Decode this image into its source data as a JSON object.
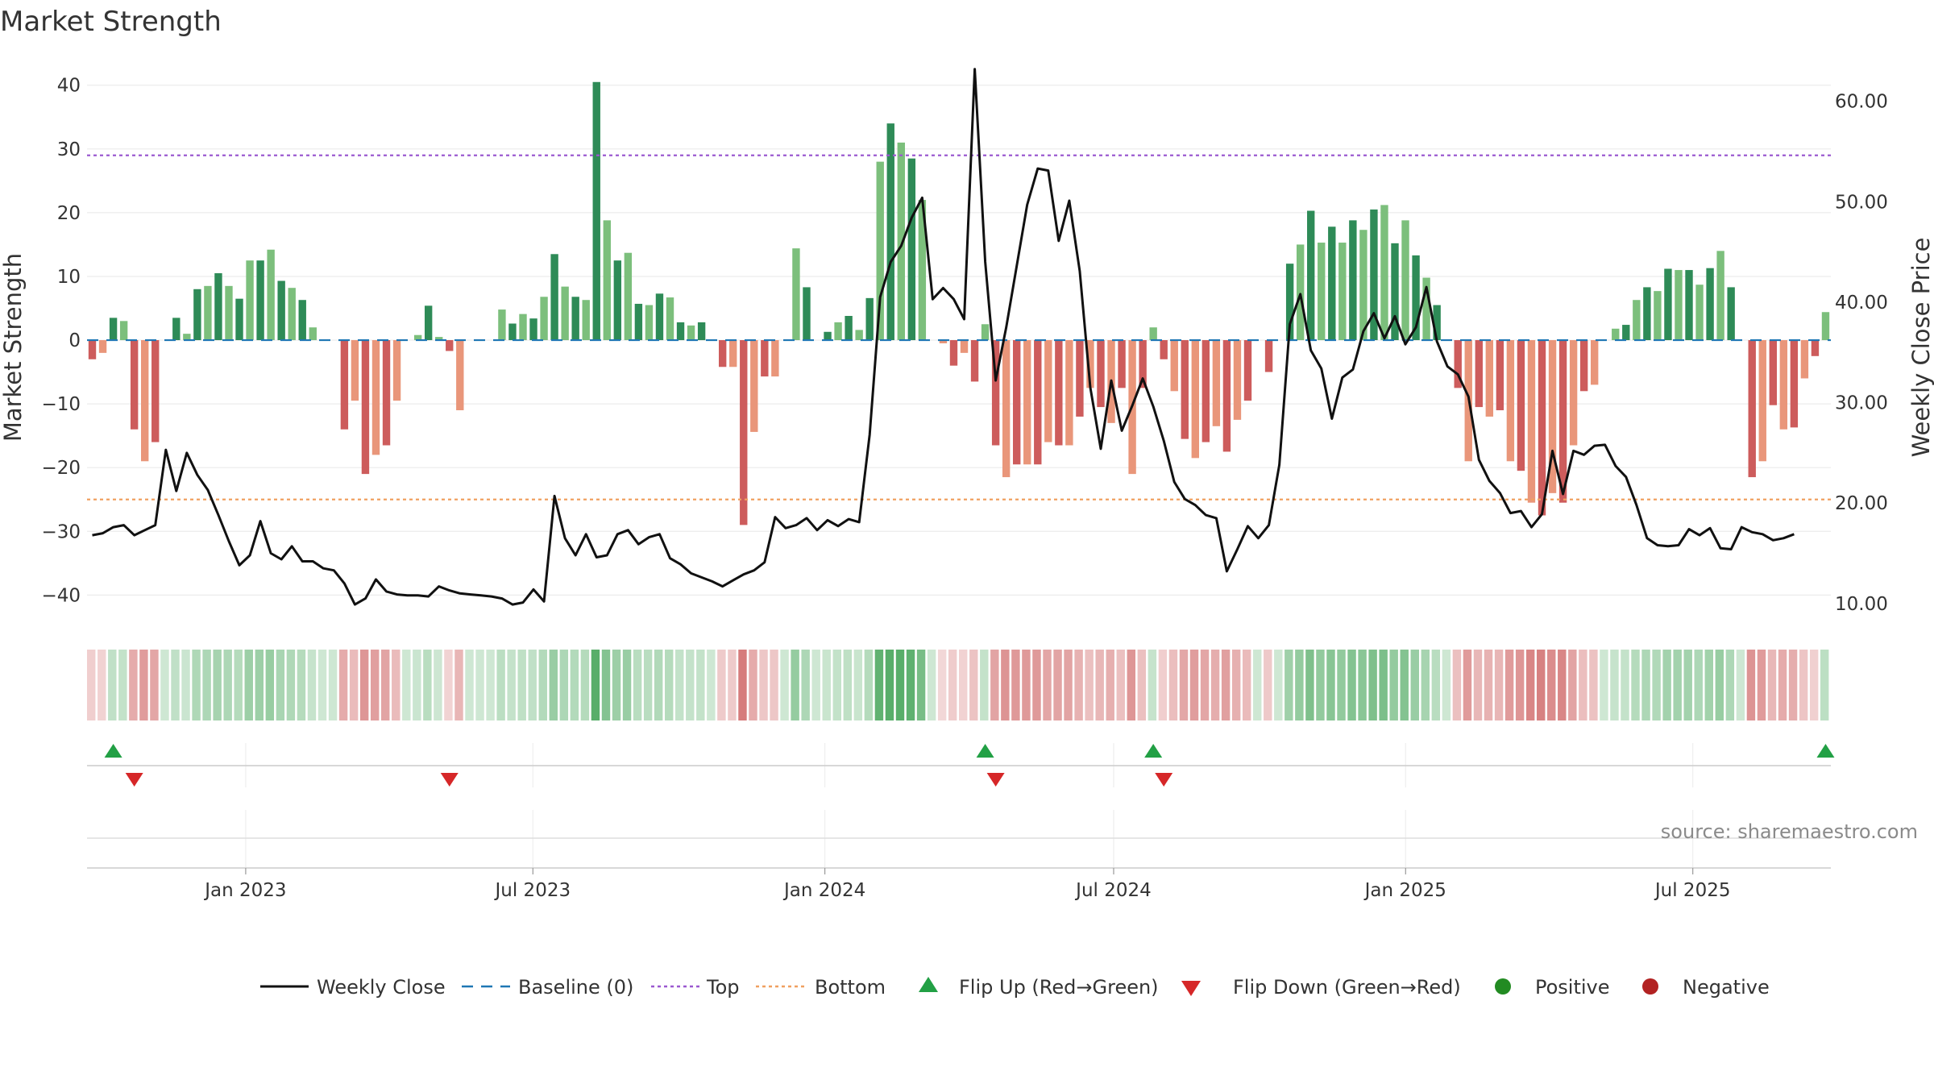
{
  "chart_data": {
    "type": "bar",
    "title": "Market Strength",
    "ylabel": "Market Strength",
    "y2label": "Weekly Close Price",
    "ylim": [
      -44,
      43
    ],
    "y2lim": [
      8.3,
      63.5
    ],
    "yticks": [
      "40",
      "30",
      "20",
      "10",
      "0",
      "−10",
      "−20",
      "−30",
      "−40"
    ],
    "y2ticks": [
      "60.00",
      "50.00",
      "40.00",
      "30.00",
      "20.00",
      "10.00"
    ],
    "xticks": [
      "Jan 2023",
      "Jul 2023",
      "Jan 2024",
      "Jul 2024",
      "Jan 2025",
      "Jul 2025"
    ],
    "x_start": "2022-09-23",
    "x_end": "2025-09-26",
    "grid": true,
    "reference_lines": [
      {
        "name": "Baseline (0)",
        "value": 0,
        "color": "#1f77b4",
        "style": "dashed"
      },
      {
        "name": "Top",
        "value": 29,
        "color": "#9b59d0",
        "style": "dotted"
      },
      {
        "name": "Bottom",
        "value": -25,
        "color": "#f0a060",
        "style": "dotted"
      }
    ],
    "strength": [
      -3,
      -2,
      3.5,
      3,
      -14,
      -19,
      -16,
      0,
      3.5,
      1,
      8,
      8.5,
      10.5,
      8.5,
      6.5,
      12.5,
      12.5,
      14.2,
      9.3,
      8.2,
      6.3,
      2,
      0,
      0,
      -14,
      -9.5,
      -21,
      -18,
      -16.5,
      -9.5,
      0,
      0.8,
      5.4,
      0.5,
      -1.7,
      -11,
      0,
      0,
      0,
      4.8,
      2.6,
      4.1,
      3.4,
      6.8,
      13.5,
      8.4,
      6.8,
      6.3,
      40.5,
      18.8,
      12.5,
      13.7,
      5.7,
      5.5,
      7.3,
      6.7,
      2.8,
      2.3,
      2.8,
      0,
      -4.2,
      -4.2,
      -29,
      -14.4,
      -5.7,
      -5.7,
      0,
      14.4,
      8.3,
      0,
      1.3,
      2.8,
      3.8,
      1.6,
      6.6,
      28,
      34,
      31,
      28.5,
      22,
      0,
      -0.5,
      -4,
      -2,
      -6.5,
      2.5,
      -16.5,
      -21.5,
      -19.5,
      -19.5,
      -19.5,
      -16,
      -16.5,
      -16.5,
      -12,
      -7.5,
      -10.5,
      -13,
      -7.5,
      -21,
      -7.5,
      2,
      -3,
      -8,
      -15.5,
      -18.5,
      -16,
      -13.5,
      -17.5,
      -12.5,
      -9.5,
      0,
      -5,
      0,
      12,
      15,
      20.3,
      15.3,
      17.8,
      15.3,
      18.8,
      17.3,
      20.5,
      21.2,
      15.2,
      18.8,
      13.3,
      9.8,
      5.5,
      0,
      -7.5,
      -19,
      -10.5,
      -12,
      -11,
      -19,
      -20.5,
      -25.5,
      -27.5,
      -24,
      -25.5,
      -16.5,
      -8,
      -7,
      0,
      1.8,
      2.4,
      6.3,
      8.3,
      7.7,
      11.2,
      11,
      11,
      8.7,
      11.3,
      14,
      8.3,
      0,
      -21.5,
      -19,
      -10.2,
      -14,
      -13.7,
      -6,
      -2.5,
      4.4
    ],
    "weekly_close": [
      16.8,
      17,
      17.6,
      17.8,
      16.8,
      17.3,
      17.8,
      25.3,
      21.2,
      25,
      22.8,
      21.3,
      18.8,
      16.2,
      13.8,
      14.8,
      18.2,
      15,
      14.4,
      15.7,
      14.2,
      14.2,
      13.5,
      13.3,
      12,
      9.9,
      10.5,
      12.4,
      11.2,
      10.9,
      10.8,
      10.8,
      10.7,
      11.7,
      11.3,
      11,
      10.9,
      10.8,
      10.7,
      10.5,
      9.9,
      10.1,
      11.4,
      10.2,
      20.7,
      16.5,
      14.8,
      16.9,
      14.6,
      14.8,
      16.9,
      17.3,
      15.9,
      16.6,
      16.9,
      14.5,
      13.9,
      13,
      12.6,
      12.2,
      11.7,
      12.3,
      12.9,
      13.3,
      14.1,
      18.6,
      17.5,
      17.8,
      18.5,
      17.3,
      18.3,
      17.7,
      18.4,
      18.1,
      26.8,
      40.5,
      44,
      45.6,
      48.4,
      50.4,
      40.3,
      41.4,
      40.3,
      38.3,
      63.2,
      44,
      32.2,
      37.5,
      43.6,
      49.7,
      53.3,
      53.1,
      46.1,
      50.1,
      43.1,
      31.5,
      25.4,
      32.2,
      27.2,
      29.7,
      32.4,
      29.6,
      26.2,
      22.1,
      20.4,
      19.8,
      18.8,
      18.5,
      13.2,
      15.4,
      17.7,
      16.5,
      17.8,
      23.8,
      37.8,
      40.8,
      35.2,
      33.4,
      28.4,
      32.5,
      33.3,
      37.1,
      38.9,
      36.4,
      38.6,
      35.8,
      37.5,
      41.5,
      36.1,
      33.6,
      32.8,
      30.6,
      24.3,
      22.2,
      21,
      19,
      19.2,
      17.6,
      18.9,
      25.2,
      20.9,
      25.2,
      24.8,
      25.7,
      25.8,
      23.7,
      22.6,
      19.8,
      16.5,
      15.8,
      15.7,
      15.8,
      17.4,
      16.8,
      17.5,
      15.5,
      15.4,
      17.6,
      17.1,
      16.9,
      16.3,
      16.5,
      16.9
    ]
  },
  "header": {
    "title": "Market Strength"
  },
  "axes": {
    "left_title": "Market Strength",
    "right_title": "Weekly Close Price"
  },
  "source": "source: sharemaestro.com",
  "legend": {
    "weekly_close": "Weekly Close",
    "baseline": "Baseline (0)",
    "top": "Top",
    "bottom": "Bottom",
    "flip_up": "Flip Up (Red→Green)",
    "flip_down": "Flip Down (Green→Red)",
    "positive": "Positive",
    "negative": "Negative"
  },
  "colors": {
    "strong_green": "#2e8b57",
    "light_green": "#7cbf7c",
    "strong_red": "#cd5c5c",
    "light_red": "#e9967a",
    "price_line": "#111111",
    "baseline": "#1f77b4",
    "top": "#9b59d0",
    "bottom": "#f0a060",
    "flip_up": "#22a045",
    "flip_down": "#d62728",
    "positive": "#228b22",
    "negative": "#b22222"
  }
}
